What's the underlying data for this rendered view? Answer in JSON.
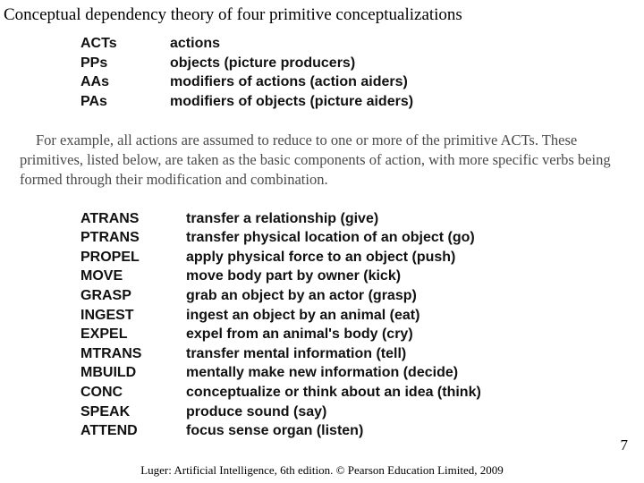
{
  "title": "Conceptual dependency theory of four primitive conceptualizations",
  "primitives": {
    "rows": [
      {
        "abbr": "ACTs",
        "desc": "actions"
      },
      {
        "abbr": "PPs",
        "desc": "objects (picture producers)"
      },
      {
        "abbr": "AAs",
        "desc": "modifiers of actions (action aiders)"
      },
      {
        "abbr": "PAs",
        "desc": "modifiers of objects (picture aiders)"
      }
    ]
  },
  "paragraph": "For example, all actions are assumed to reduce to one or more of the primitive ACTs. These primitives, listed below, are taken as the basic components of action, with more specific verbs being formed through their modification and combination.",
  "acts": {
    "rows": [
      {
        "abbr": "ATRANS",
        "desc": "transfer a relationship (give)"
      },
      {
        "abbr": "PTRANS",
        "desc": "transfer physical location of an object (go)"
      },
      {
        "abbr": "PROPEL",
        "desc": "apply physical force to an object (push)"
      },
      {
        "abbr": "MOVE",
        "desc": "move body part by owner (kick)"
      },
      {
        "abbr": "GRASP",
        "desc": "grab an object by an actor (grasp)"
      },
      {
        "abbr": "INGEST",
        "desc": "ingest an object by an animal (eat)"
      },
      {
        "abbr": "EXPEL",
        "desc": "expel from an animal's body (cry)"
      },
      {
        "abbr": "MTRANS",
        "desc": "transfer mental information (tell)"
      },
      {
        "abbr": "MBUILD",
        "desc": "mentally make new information (decide)"
      },
      {
        "abbr": "CONC",
        "desc": "conceptualize or think about an idea (think)"
      },
      {
        "abbr": "SPEAK",
        "desc": "produce sound (say)"
      },
      {
        "abbr": "ATTEND",
        "desc": "focus sense organ (listen)"
      }
    ]
  },
  "page_number": "7",
  "footer": "Luger: Artificial Intelligence, 6th edition. © Pearson Education Limited, 2009"
}
